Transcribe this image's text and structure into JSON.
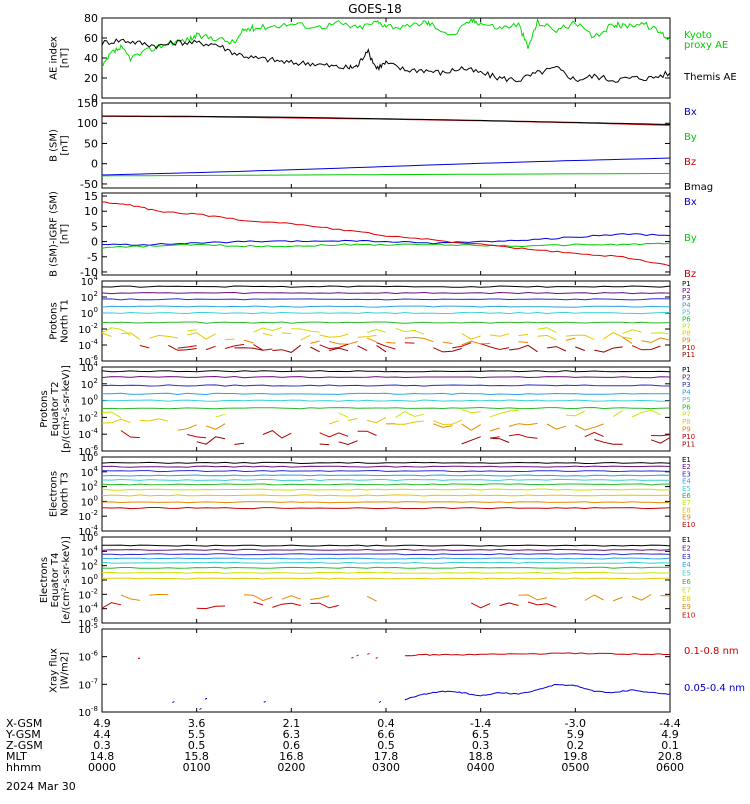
{
  "chart_data": {
    "type": "line",
    "title": "GOES-18",
    "time_axis": {
      "ticks": [
        "0000",
        "0100",
        "0200",
        "0300",
        "0400",
        "0500",
        "0600"
      ],
      "date": "2024 Mar 30",
      "rows": [
        {
          "label": "X-GSM",
          "values": [
            "4.9",
            "3.6",
            "2.1",
            "0.4",
            "-1.4",
            "-3.0",
            "-4.4"
          ]
        },
        {
          "label": "Y-GSM",
          "values": [
            "4.4",
            "5.5",
            "6.3",
            "6.6",
            "6.5",
            "5.9",
            "4.9"
          ]
        },
        {
          "label": "Z-GSM",
          "values": [
            "0.3",
            "0.5",
            "0.6",
            "0.5",
            "0.3",
            "0.2",
            "0.1"
          ]
        },
        {
          "label": "MLT",
          "values": [
            "14.8",
            "15.8",
            "16.8",
            "17.8",
            "18.8",
            "19.8",
            "20.8"
          ]
        },
        {
          "label": "hhmm",
          "values": [
            "0000",
            "0100",
            "0200",
            "0300",
            "0400",
            "0500",
            "0600"
          ]
        }
      ]
    },
    "panels": [
      {
        "ylabel": [
          "AE index",
          "[nT]"
        ],
        "ylim": [
          0,
          80
        ],
        "yticks": [
          "0",
          "20",
          "40",
          "60",
          "80"
        ],
        "legend": [
          {
            "text": "Kyoto",
            "color": "#00cc00"
          },
          {
            "text": "proxy AE",
            "color": "#00cc00"
          },
          {
            "text": "Themis AE",
            "color": "#000000"
          }
        ],
        "series": [
          {
            "name": "Kyoto proxy AE",
            "color": "#00dd00",
            "x": [
              0,
              0.1,
              0.2,
              0.3,
              0.5,
              0.7,
              0.9,
              1.0,
              1.2,
              1.4,
              1.5,
              1.6,
              1.8,
              2.0,
              2.3,
              2.5,
              2.7,
              2.9,
              3.0,
              3.2,
              3.4,
              3.5,
              3.7,
              3.9,
              4.0,
              4.2,
              4.4,
              4.5,
              4.6,
              4.8,
              5.0,
              5.2,
              5.4,
              5.5,
              5.7,
              5.9,
              6.0
            ],
            "y": [
              30,
              45,
              50,
              40,
              48,
              55,
              58,
              62,
              60,
              55,
              68,
              70,
              72,
              74,
              71,
              75,
              70,
              76,
              73,
              70,
              76,
              73,
              62,
              78,
              75,
              70,
              74,
              50,
              76,
              68,
              75,
              60,
              74,
              72,
              75,
              66,
              58
            ]
          },
          {
            "name": "Themis AE",
            "color": "#000000",
            "x": [
              0,
              0.2,
              0.4,
              0.6,
              0.8,
              1.0,
              1.2,
              1.4,
              1.6,
              1.8,
              2.0,
              2.2,
              2.4,
              2.6,
              2.7,
              2.8,
              2.9,
              3.0,
              3.2,
              3.4,
              3.6,
              3.8,
              4.0,
              4.2,
              4.4,
              4.6,
              4.8,
              5.0,
              5.2,
              5.4,
              5.6,
              5.8,
              6.0
            ],
            "y": [
              55,
              58,
              55,
              52,
              56,
              55,
              54,
              45,
              40,
              38,
              35,
              35,
              32,
              30,
              32,
              48,
              30,
              35,
              28,
              28,
              25,
              30,
              25,
              20,
              18,
              25,
              30,
              18,
              22,
              18,
              20,
              20,
              25
            ]
          }
        ]
      },
      {
        "ylabel": [
          "B (SM)",
          "[nT]"
        ],
        "ylim": [
          -60,
          150
        ],
        "yticks": [
          "-50",
          "0",
          "50",
          "100",
          "150"
        ],
        "legend": [
          {
            "text": "Bx",
            "color": "#0000cc"
          },
          {
            "text": "By",
            "color": "#00cc00"
          },
          {
            "text": "Bz",
            "color": "#cc0000"
          },
          {
            "text": "Bmag",
            "color": "#000000"
          }
        ],
        "series": [
          {
            "name": "Bx",
            "color": "#0000dd",
            "x": [
              0,
              1,
              2,
              3,
              4,
              5,
              6
            ],
            "y": [
              -28,
              -22,
              -15,
              -7,
              1,
              8,
              14
            ]
          },
          {
            "name": "By",
            "color": "#00cc00",
            "x": [
              0,
              1,
              2,
              3,
              4,
              5,
              6
            ],
            "y": [
              -30,
              -29,
              -28,
              -27,
              -26,
              -25,
              -24
            ]
          },
          {
            "name": "Bz",
            "color": "#cc0000",
            "x": [
              0,
              1,
              2,
              3,
              4,
              5,
              6
            ],
            "y": [
              117,
              116,
              113,
              110,
              106,
              101,
              95
            ]
          },
          {
            "name": "Bmag",
            "color": "#000000",
            "x": [
              0,
              1,
              2,
              3,
              4,
              5,
              6
            ],
            "y": [
              118,
              117,
              115,
              111,
              107,
              102,
              97
            ]
          }
        ]
      },
      {
        "ylabel": [
          "B (SM)-IGRF (SM)",
          "[nT]"
        ],
        "ylim": [
          -11,
          16
        ],
        "yticks": [
          "-10",
          "-5",
          "0",
          "5",
          "10",
          "15"
        ],
        "legend": [
          {
            "text": "Bx",
            "color": "#0000cc"
          },
          {
            "text": "By",
            "color": "#00cc00"
          },
          {
            "text": "Bz",
            "color": "#cc0000"
          }
        ],
        "series": [
          {
            "name": "Bx",
            "color": "#0000dd",
            "x": [
              0,
              0.5,
              1,
              1.5,
              2,
              2.5,
              3,
              3.5,
              4,
              4.5,
              5,
              5.5,
              6
            ],
            "y": [
              -1,
              -1,
              -0.5,
              0,
              0,
              0.3,
              0,
              -0.5,
              0,
              0.5,
              1.5,
              2.5,
              2
            ]
          },
          {
            "name": "By",
            "color": "#00cc00",
            "x": [
              0,
              0.5,
              1,
              1.5,
              2,
              2.5,
              3,
              3.5,
              4,
              4.5,
              5,
              5.5,
              6
            ],
            "y": [
              -2,
              -1.5,
              -1,
              -1.5,
              -1.5,
              -1,
              -1,
              -1,
              -1.2,
              -1.5,
              -1,
              -1,
              -0.5
            ]
          },
          {
            "name": "Bz",
            "color": "#dd0000",
            "x": [
              0,
              0.3,
              0.6,
              1,
              1.5,
              2,
              2.5,
              3,
              3.5,
              4,
              4.5,
              5,
              5.5,
              6
            ],
            "y": [
              13,
              12,
              10,
              9,
              7,
              6,
              4,
              2,
              0.5,
              -1,
              -2.5,
              -4,
              -5,
              -8
            ]
          }
        ]
      },
      {
        "ylabel": [
          "Protons",
          "North T1"
        ],
        "log": true,
        "ylim_exp": [
          -6,
          4
        ],
        "yticks_exp": [
          -6,
          -4,
          -2,
          0,
          2,
          4
        ],
        "legend": [
          "P1",
          "P2",
          "P3",
          "P4",
          "P5",
          "P6",
          "P7",
          "P8",
          "P9",
          "P10",
          "P11"
        ],
        "levels_exp": [
          3.3,
          2.5,
          1.7,
          0.8,
          0,
          -1.2,
          -2.3,
          -2.9,
          -3.5,
          -4.2,
          -4.5
        ]
      },
      {
        "ylabel": [
          "Protons",
          "Equator T2",
          "[p/(cm²-s-sr-keV)]"
        ],
        "log": true,
        "ylim_exp": [
          -6,
          4
        ],
        "yticks_exp": [
          -6,
          -4,
          -2,
          0,
          2,
          4
        ],
        "legend": [
          "P1",
          "P2",
          "P3",
          "P4",
          "P5",
          "P6",
          "P7",
          "P8",
          "P9",
          "P10",
          "P11"
        ],
        "levels_exp": [
          3.5,
          2.8,
          1.8,
          0.8,
          0,
          -0.9,
          -1.6,
          -2.4,
          -3.2,
          -4.0,
          -4.8
        ]
      },
      {
        "ylabel": [
          "Electrons",
          "North T3"
        ],
        "log": true,
        "ylim_exp": [
          -4,
          6
        ],
        "yticks_exp": [
          -4,
          -2,
          0,
          2,
          4,
          6
        ],
        "legend": [
          "E1",
          "E2",
          "E3",
          "E4",
          "E5",
          "E6",
          "E7",
          "E8",
          "E9",
          "E10"
        ],
        "levels_exp": [
          5.2,
          4.7,
          4.1,
          3.5,
          2.9,
          2.3,
          1.6,
          0.8,
          -0.1,
          -0.9
        ]
      },
      {
        "ylabel": [
          "Electrons",
          "Equator T4",
          "[e/(cm²-s-sr-keV)]"
        ],
        "log": true,
        "ylim_exp": [
          -6,
          6
        ],
        "yticks_exp": [
          -6,
          -4,
          -2,
          0,
          2,
          4,
          6
        ],
        "legend": [
          "E1",
          "E2",
          "E3",
          "E4",
          "E5",
          "E6",
          "E7",
          "E8",
          "E9",
          "E10"
        ],
        "levels_exp": [
          4.8,
          4.2,
          3.6,
          3.0,
          2.4,
          1.7,
          1.0,
          0.2,
          -2.5,
          -3.5
        ]
      },
      {
        "ylabel": [
          "Xray flux",
          "[W/m2]"
        ],
        "log": true,
        "ylim_exp": [
          -8,
          -5
        ],
        "yticks_exp": [
          -8,
          -7,
          -6,
          -5
        ],
        "legend": [
          {
            "text": "0.1-0.8 nm",
            "color": "#cc0000"
          },
          {
            "text": "0.05-0.4 nm",
            "color": "#0000cc"
          }
        ],
        "series": [
          {
            "name": "0.1-0.8 nm",
            "color": "#cc0000",
            "x": [
              3.2,
              3.5,
              4,
              4.5,
              5,
              5.5,
              6
            ],
            "y": [
              -5.95,
              -5.93,
              -5.92,
              -5.9,
              -5.88,
              -5.9,
              -5.92
            ]
          },
          {
            "name": "0.05-0.4 nm",
            "color": "#0000dd",
            "x": [
              3.2,
              3.4,
              3.6,
              3.8,
              4,
              4.2,
              4.4,
              4.6,
              4.8,
              5,
              5.2,
              5.4,
              5.6,
              5.8,
              6
            ],
            "y": [
              -7.55,
              -7.35,
              -7.25,
              -7.3,
              -7.4,
              -7.3,
              -7.35,
              -7.2,
              -7.0,
              -7.05,
              -7.25,
              -7.3,
              -7.2,
              -7.3,
              -7.35
            ]
          }
        ]
      }
    ],
    "proton_colors": [
      "#000000",
      "#6a0f7a",
      "#2b2bd0",
      "#2aa3e6",
      "#37d2d2",
      "#2ab82a",
      "#c8e600",
      "#e6c800",
      "#e68a00",
      "#c80000",
      "#960000"
    ],
    "electron_colors": [
      "#000000",
      "#6a0f7a",
      "#2b2bd0",
      "#2aa3e6",
      "#37d2d2",
      "#2ab82a",
      "#c8e600",
      "#e6c800",
      "#e68a00",
      "#c80000"
    ]
  }
}
